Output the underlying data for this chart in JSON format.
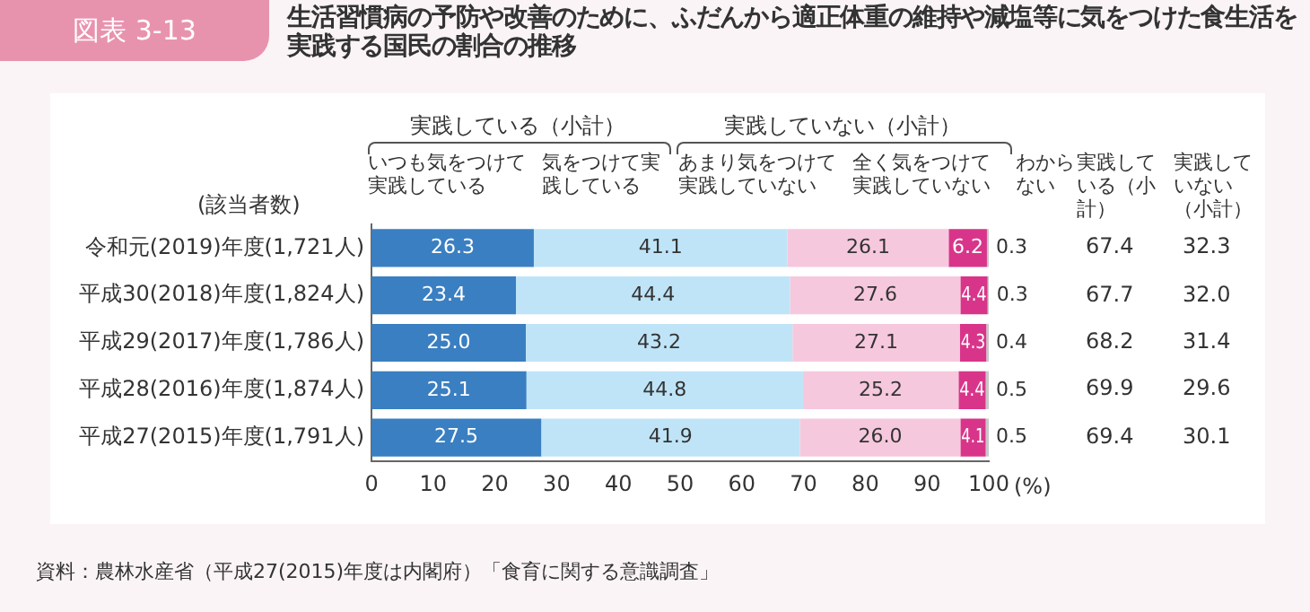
{
  "chart_data": {
    "type": "bar",
    "orientation": "horizontal",
    "stacked": true,
    "title": "生活習慣病の予防や改善のために、ふだんから適正体重の維持や減塩等に気をつけた食生活を実践する国民の割合の推移",
    "ylabel": "(該当者数)",
    "xlabel": "(%)",
    "categories": [
      "令和元(2019)年度(1,721人)",
      "平成30(2018)年度(1,824人)",
      "平成29(2017)年度(1,786人)",
      "平成28(2016)年度(1,874人)",
      "平成27(2015)年度(1,791人)"
    ],
    "series": [
      {
        "name": "いつも気をつけて実践している",
        "color": "#3a7fc1",
        "values": [
          26.3,
          23.4,
          25.0,
          25.1,
          27.5
        ],
        "value_labels": [
          "26.3",
          "23.4",
          "25.0",
          "25.1",
          "27.5"
        ]
      },
      {
        "name": "気をつけて実践している",
        "color": "#bfe4f7",
        "values": [
          41.1,
          44.4,
          43.2,
          44.8,
          41.9
        ],
        "value_labels": [
          "41.1",
          "44.4",
          "43.2",
          "44.8",
          "41.9"
        ]
      },
      {
        "name": "あまり気をつけて実践していない",
        "color": "#f6c8dd",
        "values": [
          26.1,
          27.6,
          27.1,
          25.2,
          26.0
        ],
        "value_labels": [
          "26.1",
          "27.6",
          "27.1",
          "25.2",
          "26.0"
        ]
      },
      {
        "name": "全く気をつけて実践していない",
        "color": "#d8358a",
        "values": [
          6.2,
          4.4,
          4.3,
          4.4,
          4.1
        ],
        "value_labels": [
          "6.2",
          "4.4",
          "4.3",
          "4.4",
          "4.1"
        ]
      },
      {
        "name": "わからない",
        "color": "#c8c8c8",
        "values": [
          0.3,
          0.3,
          0.4,
          0.5,
          0.5
        ],
        "value_labels": [
          "0.3",
          "0.3",
          "0.4",
          "0.5",
          "0.5"
        ]
      }
    ],
    "xlim": [
      0,
      100
    ],
    "xticks": [
      0,
      10,
      20,
      30,
      40,
      50,
      60,
      70,
      80,
      90,
      100
    ],
    "grid": false,
    "annotations": [
      "図表 3-13",
      "実践している（小計）",
      "実践していない（小計）",
      "実践している（小計）",
      "実践していない（小計）",
      "67.4",
      "32.3",
      "67.7",
      "32.0",
      "68.2",
      "31.4",
      "69.9",
      "29.6",
      "69.4",
      "30.1",
      "資料：農林水産省（平成27(2015)年度は内閣府）「食育に関する意識調査」"
    ]
  }
}
